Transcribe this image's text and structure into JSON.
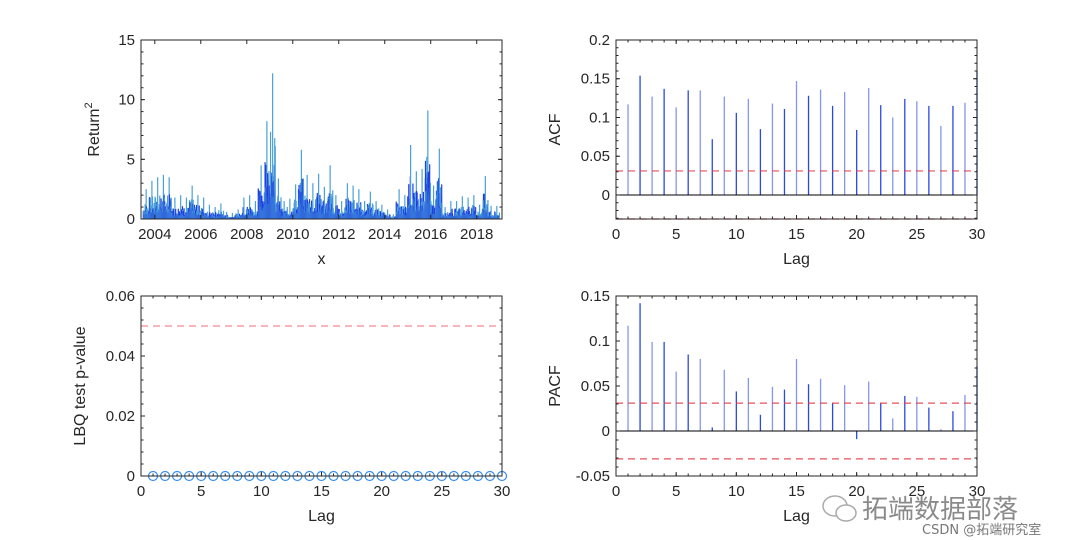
{
  "chart_data": [
    {
      "id": "returns",
      "type": "line",
      "xlabel": "x",
      "ylabel": "Return",
      "ylabel_sup": "2",
      "xlim": [
        2003.4,
        2019.1
      ],
      "ylim": [
        0,
        15
      ],
      "yticks": [
        0,
        5,
        10,
        15
      ],
      "xticks": [
        2004,
        2006,
        2008,
        2010,
        2012,
        2014,
        2016,
        2018
      ],
      "series_color": "#1f3fe0",
      "x_quarter_start": [
        2003.5,
        2003.75,
        2004.0,
        2004.25,
        2004.5,
        2004.75,
        2005.0,
        2005.25,
        2005.5,
        2005.75,
        2006.0,
        2006.25,
        2006.5,
        2006.75,
        2007.0,
        2007.25,
        2007.5,
        2007.75,
        2008.0,
        2008.25,
        2008.5,
        2008.75,
        2009.0,
        2009.25,
        2009.5,
        2009.75,
        2010.0,
        2010.25,
        2010.5,
        2010.75,
        2011.0,
        2011.25,
        2011.5,
        2011.75,
        2012.0,
        2012.25,
        2012.5,
        2012.75,
        2013.0,
        2013.25,
        2013.5,
        2013.75,
        2014.0,
        2014.25,
        2014.5,
        2014.75,
        2015.0,
        2015.25,
        2015.5,
        2015.75,
        2016.0,
        2016.25,
        2016.5,
        2016.75,
        2017.0,
        2017.25,
        2017.5,
        2017.75,
        2018.0,
        2018.25,
        2018.5,
        2018.75
      ],
      "quarterly_max": [
        2.5,
        3.2,
        3.5,
        3.7,
        3.5,
        1.8,
        2.0,
        1.8,
        2.8,
        2.0,
        1.8,
        1.2,
        1.0,
        1.3,
        0.6,
        0.5,
        0.8,
        1.8,
        2.0,
        1.5,
        4.5,
        8.2,
        12.2,
        3.4,
        1.5,
        1.7,
        2.9,
        5.8,
        3.7,
        3.0,
        3.8,
        2.7,
        4.5,
        2.0,
        1.5,
        3.0,
        2.8,
        2.5,
        1.5,
        2.3,
        1.5,
        1.2,
        0.8,
        0.4,
        2.5,
        2.0,
        6.2,
        4.0,
        4.2,
        9.1,
        2.8,
        5.9,
        1.0,
        1.5,
        1.5,
        1.9,
        1.8,
        2.0,
        1.2,
        3.6,
        1.1,
        1.1
      ]
    },
    {
      "id": "acf",
      "type": "bar",
      "xlabel": "Lag",
      "ylabel": "ACF",
      "xlim": [
        0,
        30
      ],
      "ylim": [
        -0.031,
        0.2
      ],
      "yticks": [
        0,
        0.05,
        0.1,
        0.15,
        0.2
      ],
      "xticks": [
        0,
        5,
        10,
        15,
        20,
        25,
        30
      ],
      "lags": [
        1,
        2,
        3,
        4,
        5,
        6,
        7,
        8,
        9,
        10,
        11,
        12,
        13,
        14,
        15,
        16,
        17,
        18,
        19,
        20,
        21,
        22,
        23,
        24,
        25,
        26,
        27,
        28,
        29,
        30
      ],
      "values": [
        0.117,
        0.154,
        0.127,
        0.137,
        0.113,
        0.135,
        0.135,
        0.072,
        0.127,
        0.106,
        0.124,
        0.085,
        0.118,
        0.111,
        0.147,
        0.128,
        0.136,
        0.115,
        0.133,
        0.084,
        0.138,
        0.116,
        0.1,
        0.124,
        0.121,
        0.115,
        0.089,
        0.115,
        0.119,
        0.16
      ],
      "confidence_bounds": [
        -0.031,
        0.031
      ],
      "bar_color": "#1f3fe0",
      "bound_color": "#e8323c"
    },
    {
      "id": "lbq",
      "type": "scatter",
      "xlabel": "Lag",
      "ylabel": "LBQ test p-value",
      "xlim": [
        0,
        30
      ],
      "ylim": [
        0,
        0.06
      ],
      "yticks": [
        0,
        0.02,
        0.04,
        0.06
      ],
      "xticks": [
        0,
        5,
        10,
        15,
        20,
        25,
        30
      ],
      "lags": [
        1,
        2,
        3,
        4,
        5,
        6,
        7,
        8,
        9,
        10,
        11,
        12,
        13,
        14,
        15,
        16,
        17,
        18,
        19,
        20,
        21,
        22,
        23,
        24,
        25,
        26,
        27,
        28,
        29,
        30
      ],
      "values": [
        0,
        0,
        0,
        0,
        0,
        0,
        0,
        0,
        0,
        0,
        0,
        0,
        0,
        0,
        0,
        0,
        0,
        0,
        0,
        0,
        0,
        0,
        0,
        0,
        0,
        0,
        0,
        0,
        0,
        0
      ],
      "significance_level": 0.05,
      "marker_color": "#3b8ee8",
      "line_color": "#e8323c"
    },
    {
      "id": "pacf",
      "type": "bar",
      "xlabel": "Lag",
      "ylabel": "PACF",
      "xlim": [
        0,
        30
      ],
      "ylim": [
        -0.05,
        0.15
      ],
      "yticks": [
        -0.05,
        0,
        0.05,
        0.1,
        0.15
      ],
      "xticks": [
        0,
        5,
        10,
        15,
        20,
        25,
        30
      ],
      "lags": [
        1,
        2,
        3,
        4,
        5,
        6,
        7,
        8,
        9,
        10,
        11,
        12,
        13,
        14,
        15,
        16,
        17,
        18,
        19,
        20,
        21,
        22,
        23,
        24,
        25,
        26,
        27,
        28,
        29,
        30
      ],
      "values": [
        0.117,
        0.142,
        0.099,
        0.099,
        0.066,
        0.085,
        0.08,
        0.004,
        0.068,
        0.044,
        0.059,
        0.018,
        0.049,
        0.046,
        0.08,
        0.052,
        0.058,
        0.031,
        0.051,
        -0.009,
        0.055,
        0.031,
        0.014,
        0.039,
        0.038,
        0.026,
        0.002,
        0.022,
        0.04,
        0.072
      ],
      "confidence_bounds": [
        -0.031,
        0.031
      ],
      "bar_color": "#1f3fe0",
      "bound_color": "#e8323c"
    }
  ],
  "watermark": {
    "main": "拓端数据部落",
    "sub": "CSDN @拓端研究室"
  }
}
